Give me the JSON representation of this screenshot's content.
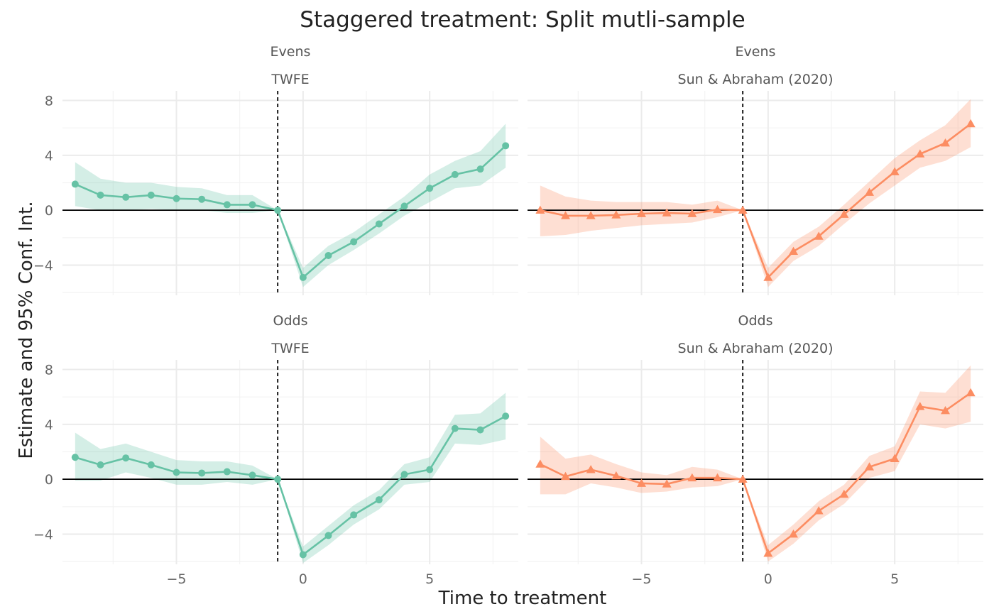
{
  "chart_data": {
    "title": "Staggered treatment: Split mutli-sample",
    "xlabel": "Time to treatment",
    "ylabel": "Estimate and 95% Conf. Int.",
    "xlim": [
      -9.5,
      8.5
    ],
    "ylim": [
      -6.2,
      8.7
    ],
    "x_ticks": [
      -5,
      0,
      5
    ],
    "y_ticks": [
      -4,
      0,
      4,
      8
    ],
    "reference_line_x": -1,
    "reference_line_y": 0,
    "grid": true,
    "panels": [
      {
        "type": "line",
        "sample": "Evens",
        "estimator": "TWFE",
        "color": "#66c2a5",
        "marker": "circle",
        "x": [
          -9,
          -8,
          -7,
          -6,
          -5,
          -4,
          -3,
          -2,
          -1,
          0,
          1,
          2,
          3,
          4,
          5,
          6,
          7,
          8
        ],
        "y": [
          1.9,
          1.1,
          0.95,
          1.1,
          0.85,
          0.8,
          0.4,
          0.4,
          0.0,
          -4.9,
          -3.3,
          -2.3,
          -1.0,
          0.3,
          1.6,
          2.6,
          3.0,
          4.7
        ],
        "ci_low": [
          0.3,
          0.0,
          0.0,
          0.1,
          0.0,
          0.0,
          -0.2,
          -0.2,
          0.0,
          -5.6,
          -4.0,
          -2.9,
          -1.7,
          -0.4,
          0.6,
          1.6,
          1.8,
          3.1
        ],
        "ci_high": [
          3.5,
          2.3,
          2.0,
          2.0,
          1.7,
          1.6,
          1.1,
          1.1,
          0.0,
          -4.2,
          -2.6,
          -1.6,
          -0.3,
          1.0,
          2.6,
          3.6,
          4.3,
          6.3
        ]
      },
      {
        "type": "line",
        "sample": "Evens",
        "estimator": "Sun & Abraham (2020)",
        "color": "#fc8d62",
        "marker": "triangle",
        "x": [
          -9,
          -8,
          -7,
          -6,
          -5,
          -4,
          -3,
          -2,
          -1,
          0,
          1,
          2,
          3,
          4,
          5,
          6,
          7,
          8
        ],
        "y": [
          0.0,
          -0.4,
          -0.4,
          -0.35,
          -0.25,
          -0.2,
          -0.25,
          0.05,
          0.0,
          -4.9,
          -3.0,
          -1.9,
          -0.3,
          1.3,
          2.8,
          4.1,
          4.9,
          6.3
        ],
        "ci_low": [
          -1.9,
          -1.8,
          -1.5,
          -1.3,
          -1.1,
          -1.0,
          -0.9,
          -0.5,
          0.0,
          -5.6,
          -3.7,
          -2.6,
          -1.0,
          0.5,
          1.8,
          3.1,
          3.6,
          4.6
        ],
        "ci_high": [
          1.8,
          1.0,
          0.7,
          0.6,
          0.6,
          0.6,
          0.4,
          0.7,
          0.0,
          -4.2,
          -2.3,
          -1.2,
          0.4,
          2.1,
          3.8,
          5.1,
          6.2,
          8.1
        ]
      },
      {
        "type": "line",
        "sample": "Odds",
        "estimator": "TWFE",
        "color": "#66c2a5",
        "marker": "circle",
        "x": [
          -9,
          -8,
          -7,
          -6,
          -5,
          -4,
          -3,
          -2,
          -1,
          0,
          1,
          2,
          3,
          4,
          5,
          6,
          7,
          8
        ],
        "y": [
          1.6,
          1.05,
          1.55,
          1.05,
          0.5,
          0.45,
          0.55,
          0.3,
          0.0,
          -5.5,
          -4.1,
          -2.6,
          -1.5,
          0.35,
          0.7,
          3.7,
          3.6,
          4.6
        ],
        "ci_low": [
          -0.1,
          -0.1,
          0.5,
          0.1,
          -0.4,
          -0.4,
          -0.2,
          -0.4,
          0.0,
          -6.1,
          -4.8,
          -3.3,
          -2.2,
          -0.4,
          -0.2,
          2.6,
          2.5,
          2.9
        ],
        "ci_high": [
          3.4,
          2.2,
          2.6,
          2.0,
          1.4,
          1.3,
          1.3,
          1.0,
          0.0,
          -4.9,
          -3.4,
          -1.9,
          -0.8,
          1.1,
          1.6,
          4.7,
          4.8,
          6.3
        ]
      },
      {
        "type": "line",
        "sample": "Odds",
        "estimator": "Sun & Abraham (2020)",
        "color": "#fc8d62",
        "marker": "triangle",
        "x": [
          -9,
          -8,
          -7,
          -6,
          -5,
          -4,
          -3,
          -2,
          -1,
          0,
          1,
          2,
          3,
          4,
          5,
          6,
          7,
          8
        ],
        "y": [
          1.1,
          0.2,
          0.7,
          0.25,
          -0.3,
          -0.35,
          0.1,
          0.1,
          0.0,
          -5.4,
          -4.0,
          -2.3,
          -1.1,
          0.9,
          1.5,
          5.3,
          5.0,
          6.3
        ],
        "ci_low": [
          -1.1,
          -1.1,
          -0.3,
          -0.6,
          -1.0,
          -0.9,
          -0.6,
          -0.5,
          0.0,
          -6.0,
          -4.7,
          -3.0,
          -1.8,
          0.1,
          0.6,
          4.0,
          3.7,
          4.2
        ],
        "ci_high": [
          3.1,
          1.5,
          1.8,
          1.1,
          0.5,
          0.3,
          0.9,
          0.7,
          0.0,
          -4.8,
          -3.3,
          -1.6,
          -0.4,
          1.7,
          2.4,
          6.4,
          6.3,
          8.3
        ]
      }
    ]
  }
}
